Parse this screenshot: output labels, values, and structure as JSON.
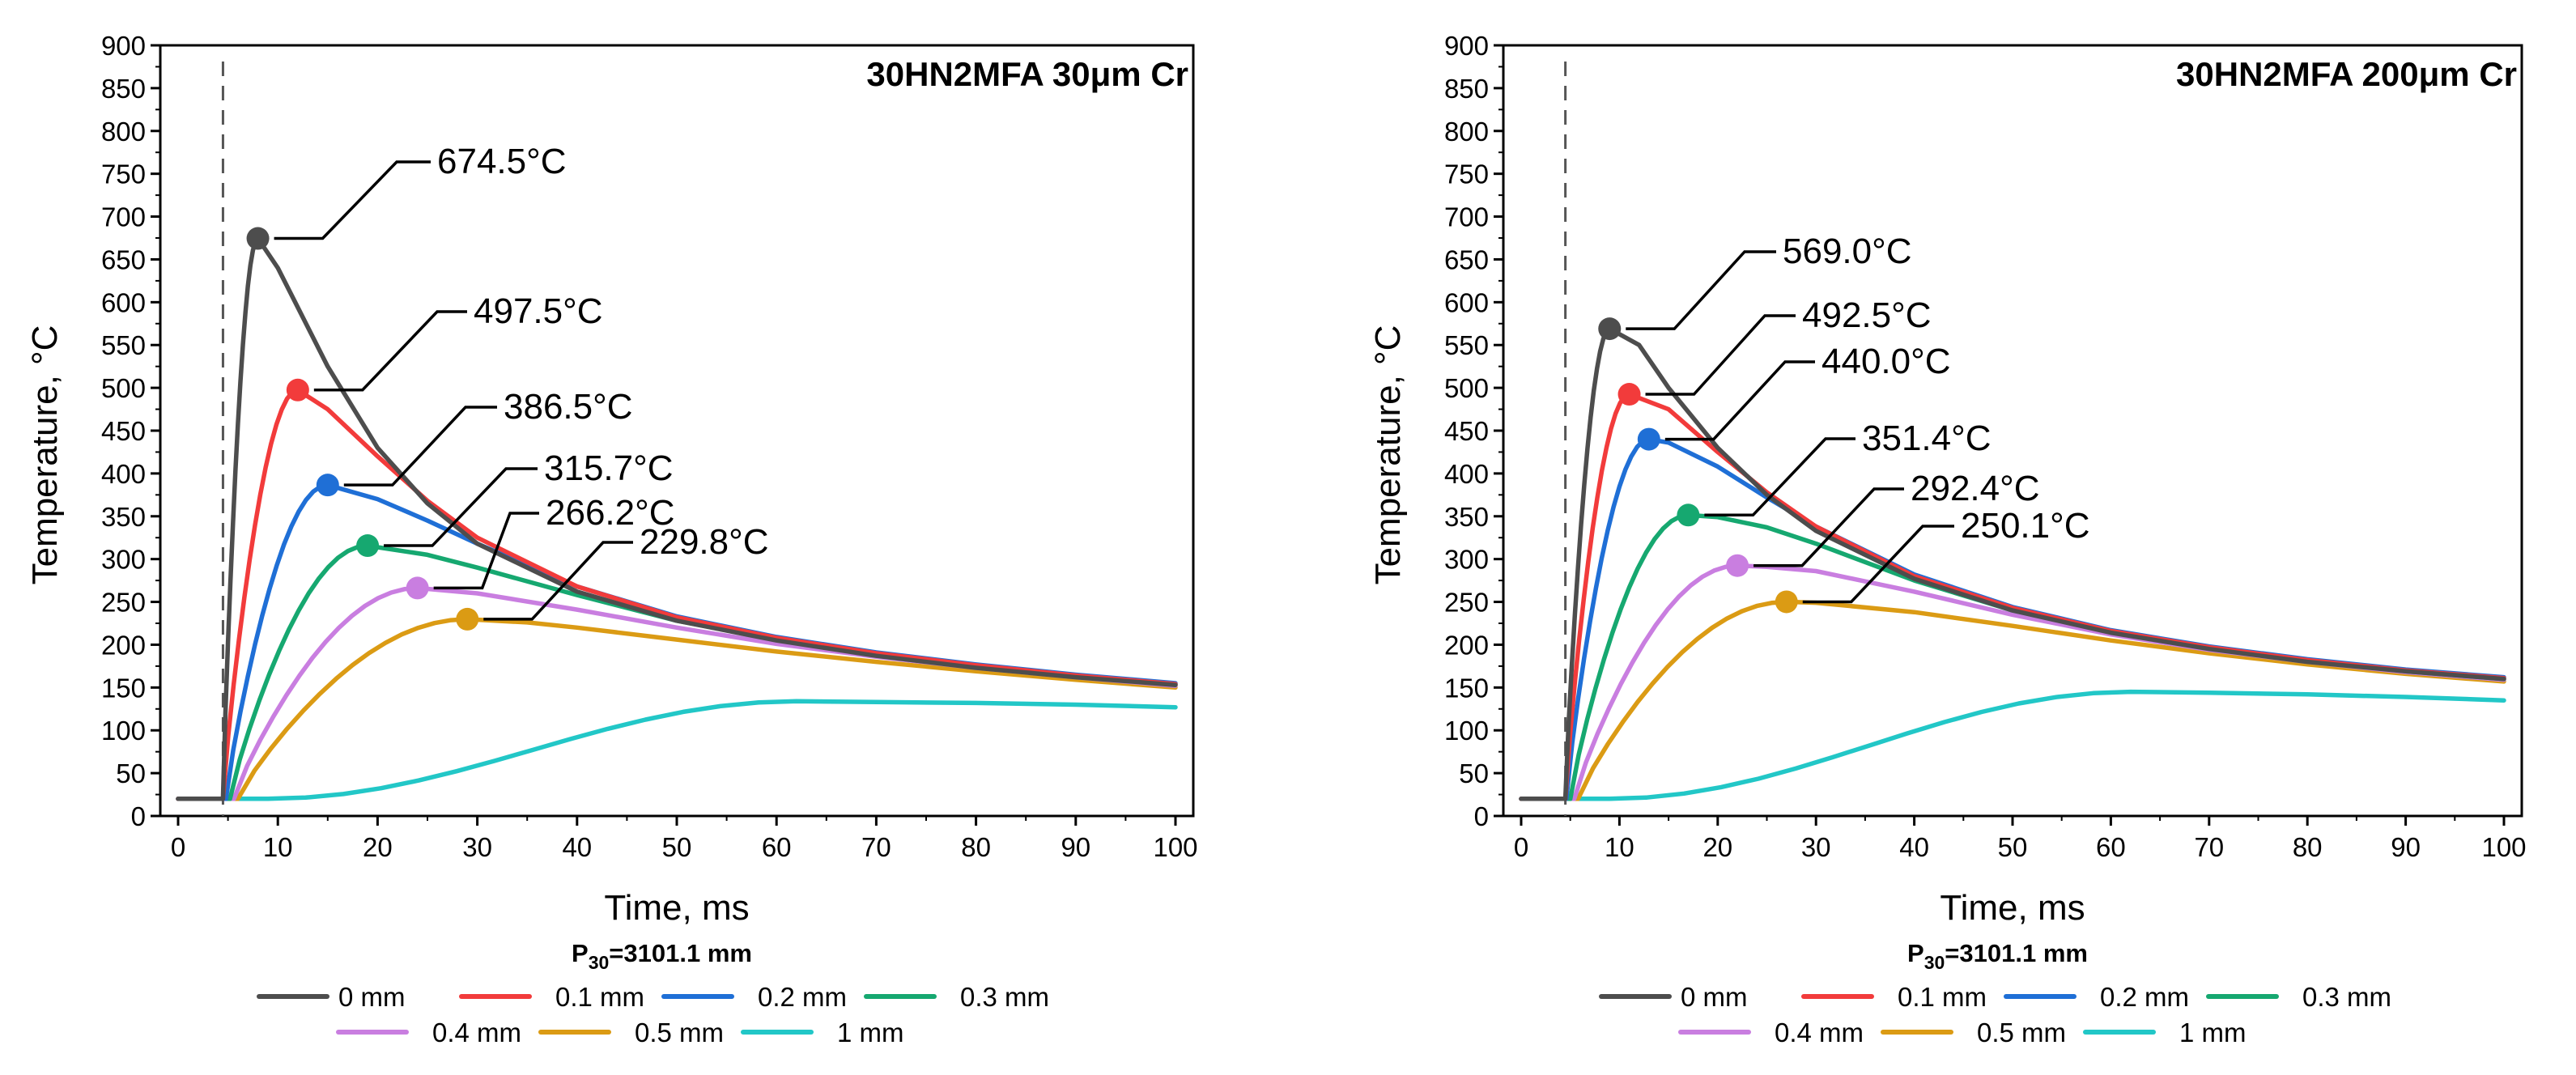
{
  "chart_data": [
    {
      "type": "line",
      "title": "30HN2MFA 30μm Cr",
      "xlabel": "Time, ms",
      "ylabel": "Temperature, °C",
      "xlim": [
        0,
        100
      ],
      "ylim": [
        0,
        900
      ],
      "xticks": [
        "0",
        "10",
        "20",
        "30",
        "40",
        "50",
        "60",
        "70",
        "80",
        "90",
        "100"
      ],
      "yticks": [
        "0",
        "50",
        "100",
        "150",
        "200",
        "250",
        "300",
        "350",
        "400",
        "450",
        "500",
        "550",
        "600",
        "650",
        "700",
        "750",
        "800",
        "850",
        "900"
      ],
      "vline_x": 4.5,
      "subtitle_main": "P",
      "subtitle_sub": "30",
      "subtitle_rest": "=3101.1 mm",
      "legend": [
        "0 mm",
        "0.1 mm",
        "0.2 mm",
        "0.3 mm",
        "0.4 mm",
        "0.5 mm",
        "1 mm"
      ],
      "series": [
        {
          "name": "0 mm",
          "color": "#4d4d4d",
          "rise_start": 4.5,
          "peak_t": 8.0,
          "peak_T": 674.5,
          "tail": [
            [
              8,
              674.5
            ],
            [
              10,
              640
            ],
            [
              15,
              525
            ],
            [
              20,
              430
            ],
            [
              25,
              365
            ],
            [
              30,
              318
            ],
            [
              40,
              262
            ],
            [
              50,
              228
            ],
            [
              60,
              205
            ],
            [
              70,
              187
            ],
            [
              80,
              173
            ],
            [
              90,
              162
            ],
            [
              100,
              153
            ]
          ],
          "marker_t": 8.0,
          "marker_T": 674.5,
          "label": "674.5°C"
        },
        {
          "name": "0.1 mm",
          "color": "#f23b3b",
          "rise_start": 4.5,
          "peak_t": 12.0,
          "peak_T": 497.5,
          "tail": [
            [
              12,
              497.5
            ],
            [
              15,
              475
            ],
            [
              20,
              420
            ],
            [
              25,
              368
            ],
            [
              30,
              325
            ],
            [
              40,
              268
            ],
            [
              50,
              232
            ],
            [
              60,
              208
            ],
            [
              70,
              190
            ],
            [
              80,
              176
            ],
            [
              90,
              164
            ],
            [
              100,
              154
            ]
          ],
          "marker_t": 12.0,
          "marker_T": 497.5,
          "label": "497.5°C"
        },
        {
          "name": "0.2 mm",
          "color": "#1f6fd6",
          "rise_start": 4.8,
          "peak_t": 15.0,
          "peak_T": 386.5,
          "tail": [
            [
              15,
              386.5
            ],
            [
              20,
              370
            ],
            [
              25,
              345
            ],
            [
              30,
              318
            ],
            [
              40,
              268
            ],
            [
              50,
              233
            ],
            [
              60,
              209
            ],
            [
              70,
              191
            ],
            [
              80,
              177
            ],
            [
              90,
              165
            ],
            [
              100,
              155
            ]
          ],
          "marker_t": 15.0,
          "marker_T": 386.5,
          "label": "386.5°C"
        },
        {
          "name": "0.3 mm",
          "color": "#16a870",
          "rise_start": 5.2,
          "peak_t": 19.0,
          "peak_T": 315.7,
          "tail": [
            [
              19,
              315.7
            ],
            [
              25,
              305
            ],
            [
              30,
              290
            ],
            [
              40,
              258
            ],
            [
              50,
              228
            ],
            [
              60,
              206
            ],
            [
              70,
              189
            ],
            [
              80,
              176
            ],
            [
              90,
              164
            ],
            [
              100,
              154
            ]
          ],
          "marker_t": 19.0,
          "marker_T": 315.7,
          "label": "315.7°C"
        },
        {
          "name": "0.4 mm",
          "color": "#c97ee0",
          "rise_start": 5.6,
          "peak_t": 24.0,
          "peak_T": 266.2,
          "tail": [
            [
              24,
              266.2
            ],
            [
              30,
              260
            ],
            [
              40,
              241
            ],
            [
              50,
              220
            ],
            [
              60,
              201
            ],
            [
              70,
              186
            ],
            [
              80,
              173
            ],
            [
              90,
              162
            ],
            [
              100,
              152
            ]
          ],
          "marker_t": 24.0,
          "marker_T": 266.2,
          "label": "266.2°C"
        },
        {
          "name": "0.5 mm",
          "color": "#db9b14",
          "rise_start": 6.0,
          "peak_t": 29.0,
          "peak_T": 229.8,
          "tail": [
            [
              29,
              229.8
            ],
            [
              35,
              226
            ],
            [
              40,
              220
            ],
            [
              50,
              206
            ],
            [
              60,
              192
            ],
            [
              70,
              180
            ],
            [
              80,
              169
            ],
            [
              90,
              159
            ],
            [
              100,
              150
            ]
          ],
          "marker_t": 29.0,
          "marker_T": 229.8,
          "label": "229.8°C"
        },
        {
          "name": "1 mm",
          "color": "#22c7c7",
          "rise_start": 9.0,
          "peak_t": 62.0,
          "peak_T": 134.0,
          "tail": [
            [
              62,
              134
            ],
            [
              70,
              133
            ],
            [
              80,
              132
            ],
            [
              90,
              130
            ],
            [
              100,
              127
            ]
          ],
          "marker_t": null,
          "marker_T": null,
          "label": null
        }
      ],
      "annotations": [
        {
          "text": "674.5°C"
        },
        {
          "text": "497.5°C"
        },
        {
          "text": "386.5°C"
        },
        {
          "text": "315.7°C"
        },
        {
          "text": "266.2°C"
        },
        {
          "text": "229.8°C"
        }
      ]
    },
    {
      "type": "line",
      "title": "30HN2MFA 200μm Cr",
      "xlabel": "Time, ms",
      "ylabel": "Temperature, °C",
      "xlim": [
        0,
        100
      ],
      "ylim": [
        0,
        900
      ],
      "xticks": [
        "0",
        "10",
        "20",
        "30",
        "40",
        "50",
        "60",
        "70",
        "80",
        "90",
        "100"
      ],
      "yticks": [
        "0",
        "50",
        "100",
        "150",
        "200",
        "250",
        "300",
        "350",
        "400",
        "450",
        "500",
        "550",
        "600",
        "650",
        "700",
        "750",
        "800",
        "850",
        "900"
      ],
      "vline_x": 4.5,
      "subtitle_main": "P",
      "subtitle_sub": "30",
      "subtitle_rest": "=3101.1 mm",
      "legend": [
        "0 mm",
        "0.1 mm",
        "0.2 mm",
        "0.3 mm",
        "0.4 mm",
        "0.5 mm",
        "1 mm"
      ],
      "series": [
        {
          "name": "0 mm",
          "color": "#4d4d4d",
          "rise_start": 4.5,
          "peak_t": 9.0,
          "peak_T": 569.0,
          "tail": [
            [
              9,
              569
            ],
            [
              12,
              550
            ],
            [
              15,
              500
            ],
            [
              20,
              430
            ],
            [
              25,
              375
            ],
            [
              30,
              333
            ],
            [
              40,
              277
            ],
            [
              50,
              240
            ],
            [
              60,
              214
            ],
            [
              70,
              195
            ],
            [
              80,
              180
            ],
            [
              90,
              169
            ],
            [
              100,
              160
            ]
          ],
          "marker_t": 9.0,
          "marker_T": 569.0,
          "label": "569.0°C"
        },
        {
          "name": "0.1 mm",
          "color": "#f23b3b",
          "rise_start": 4.5,
          "peak_t": 11.0,
          "peak_T": 492.5,
          "tail": [
            [
              11,
              492.5
            ],
            [
              15,
              475
            ],
            [
              20,
              425
            ],
            [
              25,
              378
            ],
            [
              30,
              338
            ],
            [
              40,
              280
            ],
            [
              50,
              243
            ],
            [
              60,
              216
            ],
            [
              70,
              197
            ],
            [
              80,
              182
            ],
            [
              90,
              170
            ],
            [
              100,
              161
            ]
          ],
          "marker_t": 11.0,
          "marker_T": 492.5,
          "label": "492.5°C"
        },
        {
          "name": "0.2 mm",
          "color": "#1f6fd6",
          "rise_start": 4.6,
          "peak_t": 13.0,
          "peak_T": 440.0,
          "tail": [
            [
              13,
              440
            ],
            [
              15,
              436
            ],
            [
              20,
              408
            ],
            [
              25,
              372
            ],
            [
              30,
              338
            ],
            [
              40,
              282
            ],
            [
              50,
              244
            ],
            [
              60,
              217
            ],
            [
              70,
              198
            ],
            [
              80,
              183
            ],
            [
              90,
              171
            ],
            [
              100,
              162
            ]
          ],
          "marker_t": 13.0,
          "marker_T": 440.0,
          "label": "440.0°C"
        },
        {
          "name": "0.3 mm",
          "color": "#16a870",
          "rise_start": 5.0,
          "peak_t": 17.0,
          "peak_T": 351.4,
          "tail": [
            [
              17,
              351.4
            ],
            [
              20,
              349
            ],
            [
              25,
              337
            ],
            [
              30,
              318
            ],
            [
              40,
              275
            ],
            [
              50,
              240
            ],
            [
              60,
              215
            ],
            [
              70,
              196
            ],
            [
              80,
              181
            ],
            [
              90,
              169
            ],
            [
              100,
              160
            ]
          ],
          "marker_t": 17.0,
          "marker_T": 351.4,
          "label": "351.4°C"
        },
        {
          "name": "0.4 mm",
          "color": "#c97ee0",
          "rise_start": 5.4,
          "peak_t": 22.0,
          "peak_T": 292.4,
          "tail": [
            [
              22,
              292.4
            ],
            [
              25,
              291
            ],
            [
              30,
              286
            ],
            [
              40,
              262
            ],
            [
              50,
              235
            ],
            [
              60,
              212
            ],
            [
              70,
              194
            ],
            [
              80,
              180
            ],
            [
              90,
              168
            ],
            [
              100,
              159
            ]
          ],
          "marker_t": 22.0,
          "marker_T": 292.4,
          "label": "292.4°C"
        },
        {
          "name": "0.5 mm",
          "color": "#db9b14",
          "rise_start": 5.8,
          "peak_t": 27.0,
          "peak_T": 250.1,
          "tail": [
            [
              27,
              250.1
            ],
            [
              30,
              249
            ],
            [
              40,
              238
            ],
            [
              50,
              222
            ],
            [
              60,
              205
            ],
            [
              70,
              190
            ],
            [
              80,
              177
            ],
            [
              90,
              166
            ],
            [
              100,
              157
            ]
          ],
          "marker_t": 27.0,
          "marker_T": 250.1,
          "label": "250.1°C"
        },
        {
          "name": "1 mm",
          "color": "#22c7c7",
          "rise_start": 9.0,
          "peak_t": 62.0,
          "peak_T": 145.0,
          "tail": [
            [
              62,
              145
            ],
            [
              70,
              144
            ],
            [
              80,
              142
            ],
            [
              90,
              139
            ],
            [
              100,
              135
            ]
          ],
          "marker_t": null,
          "marker_T": null,
          "label": null
        }
      ],
      "annotations": [
        {
          "text": "569.0°C"
        },
        {
          "text": "492.5°C"
        },
        {
          "text": "440.0°C"
        },
        {
          "text": "351.4°C"
        },
        {
          "text": "292.4°C"
        },
        {
          "text": "250.1°C"
        }
      ]
    }
  ]
}
